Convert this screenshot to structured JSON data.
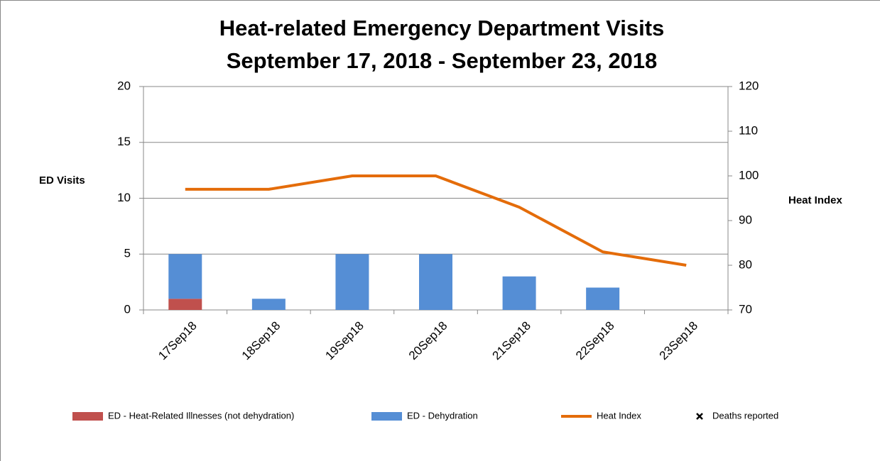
{
  "chart_data": {
    "type": "bar",
    "title": "Heat-related Emergency Department Visits",
    "subtitle": "September 17, 2018 - September 23, 2018",
    "y_label": "ED Visits",
    "y2_label": "Heat Index",
    "categories": [
      "17Sep18",
      "18Sep18",
      "19Sep18",
      "20Sep18",
      "21Sep18",
      "22Sep18",
      "23Sep18"
    ],
    "series": [
      {
        "name": "ED - Heat-Related Illnesses (not dehydration)",
        "type": "bar",
        "color": "#c0504d",
        "values": [
          1,
          0,
          0,
          0,
          0,
          0,
          0
        ]
      },
      {
        "name": "ED - Dehydration",
        "type": "bar",
        "color": "#558ed5",
        "values": [
          4,
          1,
          5,
          5,
          3,
          2,
          0
        ]
      },
      {
        "name": "Heat Index",
        "type": "line",
        "axis": "y2",
        "color": "#e46c0a",
        "values": [
          97,
          97,
          100,
          100,
          93,
          83,
          80
        ]
      },
      {
        "name": "Deaths reported",
        "type": "scatter",
        "color": "#000000",
        "values": [
          null,
          null,
          null,
          null,
          null,
          null,
          null
        ]
      }
    ],
    "ylim": [
      0,
      20
    ],
    "yticks": [
      0,
      5,
      10,
      15,
      20
    ],
    "y2lim": [
      70,
      120
    ],
    "y2ticks": [
      70,
      80,
      90,
      100,
      110,
      120
    ],
    "stacked": true,
    "grid": true,
    "legend": "bottom"
  }
}
